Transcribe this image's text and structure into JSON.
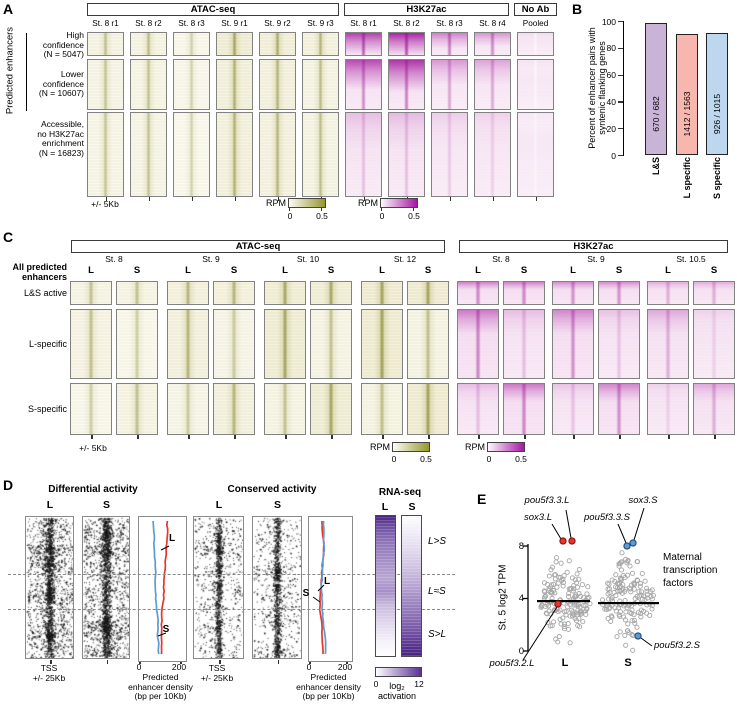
{
  "colors": {
    "olive_max": "#96962c",
    "magenta_max": "#a617a6",
    "purple_max": "#5a3193",
    "red_point": "#e8352b",
    "blue_point": "#5b9bd5",
    "bar_ls": "#c9b4d8",
    "bar_l": "#f8b7ae",
    "bar_s": "#bdd7ee"
  },
  "figure": {
    "panelA": {
      "tag": "A",
      "side_label": "Predicted enhancers",
      "groups": [
        {
          "title": "ATAC-seq",
          "cols": [
            "St. 8 r1",
            "St. 8 r2",
            "St. 8 r3",
            "St. 9 r1",
            "St. 9 r2",
            "St. 9 r3"
          ]
        },
        {
          "title": "H3K27ac",
          "cols": [
            "St. 8 r1",
            "St. 8 r2",
            "St. 8 r3",
            "St. 8 r4"
          ]
        },
        {
          "title": "No Ab",
          "cols": [
            "Pooled"
          ]
        }
      ],
      "rows": [
        {
          "lines": [
            "High",
            "confidence",
            "(N = 5047)"
          ]
        },
        {
          "lines": [
            "Lower",
            "confidence",
            "(N = 10607)"
          ]
        },
        {
          "lines": [
            "Accessible,",
            "no H3K27ac",
            "enrichment",
            "(N = 16823)"
          ]
        }
      ],
      "window_label": "+/- 5Kb",
      "colorbars": [
        {
          "label": "RPM",
          "min": "0",
          "max": "0.5"
        },
        {
          "label": "RPM",
          "min": "0",
          "max": "0.5"
        }
      ]
    },
    "panelB": {
      "tag": "B",
      "ylabel_lines": [
        "Percent of enhancer pairs with",
        "syntenic flanking genes"
      ],
      "yticks": [
        "100",
        "80",
        "60",
        "40",
        "20",
        "0"
      ],
      "bars": [
        {
          "category": "L&S",
          "count_label": "670 / 682",
          "value": 98.2
        },
        {
          "category": "L specific",
          "count_label": "1412 / 1563",
          "value": 90.3
        },
        {
          "category": "S specific",
          "count_label": "926 / 1015",
          "value": 91.2
        }
      ]
    },
    "panelC": {
      "tag": "C",
      "side_lines": [
        "All predicted",
        "enhancers"
      ],
      "groups": [
        {
          "title": "ATAC-seq",
          "stages": [
            {
              "name": "St. 8"
            },
            {
              "name": "St. 9"
            },
            {
              "name": "St. 10"
            },
            {
              "name": "St. 12"
            }
          ]
        },
        {
          "title": "H3K27ac",
          "stages": [
            {
              "name": "St. 8"
            },
            {
              "name": "St. 9"
            },
            {
              "name": "St. 10.5"
            }
          ]
        }
      ],
      "sub_labels": {
        "L": "L",
        "S": "S"
      },
      "rows": [
        {
          "label": "L&S active"
        },
        {
          "label": "L-specific"
        },
        {
          "label": "S-specific"
        }
      ],
      "window_label": "+/- 5Kb",
      "colorbars": [
        {
          "label": "RPM",
          "min": "0",
          "max": "0.5"
        },
        {
          "label": "RPM",
          "min": "0",
          "max": "0.5"
        }
      ]
    },
    "panelD": {
      "tag": "D",
      "sections": [
        {
          "title": "Differential activity",
          "col_labels": [
            "L",
            "S"
          ],
          "curve_labels": {
            "L": "L",
            "S": "S"
          },
          "tss_lines": [
            "TSS",
            "+/- 25Kb"
          ],
          "axis": {
            "min": "0",
            "max": "200"
          },
          "axis_label_lines": [
            "Predicted",
            "enhancer density",
            "(bp per 10Kb)"
          ]
        },
        {
          "title": "Conserved activity",
          "col_labels": [
            "L",
            "S"
          ],
          "curve_labels": {
            "L": "L",
            "S": "S"
          },
          "tss_lines": [
            "TSS",
            "+/- 25Kb"
          ],
          "axis": {
            "min": "0",
            "max": "200"
          },
          "axis_label_lines": [
            "Predicted",
            "enhancer density",
            "(bp per 10Kb)"
          ]
        }
      ],
      "rna": {
        "title": "RNA-seq",
        "col_labels": [
          "L",
          "S"
        ],
        "region_labels": [
          "L>S",
          "L≈S",
          "S>L"
        ],
        "colorbar": {
          "min": "0",
          "max": "12",
          "label_main": "log₂",
          "label_word": "activation"
        }
      }
    },
    "panelE": {
      "tag": "E",
      "ylabel": "St. 5 log2 TPM",
      "yticks": [
        "8",
        "4",
        "0"
      ],
      "group_labels": [
        "L",
        "S"
      ],
      "note_lines": [
        "Maternal",
        "transcription",
        "factors"
      ],
      "genes": [
        {
          "name": "pou5f3.3.L"
        },
        {
          "name": "sox3.L"
        },
        {
          "name": "pou5f3.3.S"
        },
        {
          "name": "sox3.S"
        },
        {
          "name": "pou5f3.2.L"
        },
        {
          "name": "pou5f3.2.S"
        }
      ]
    }
  },
  "chart_data": [
    {
      "type": "heatmap",
      "title": "Panel A: signal at predicted enhancers",
      "column_groups": {
        "ATAC-seq": [
          "St. 8 r1",
          "St. 8 r2",
          "St. 8 r3",
          "St. 9 r1",
          "St. 9 r2",
          "St. 9 r3"
        ],
        "H3K27ac": [
          "St. 8 r1",
          "St. 8 r2",
          "St. 8 r3",
          "St. 8 r4"
        ],
        "No Ab": [
          "Pooled"
        ]
      },
      "row_groups": [
        "High confidence (N = 5047)",
        "Lower confidence (N = 10607)",
        "Accessible, no H3K27ac enrichment (N = 16823)"
      ],
      "window": "+/- 5Kb",
      "scale": {
        "label": "RPM",
        "min": 0,
        "max": 0.5
      }
    },
    {
      "type": "bar",
      "categories": [
        "L&S",
        "L specific",
        "S specific"
      ],
      "values": [
        98.2,
        90.3,
        91.2
      ],
      "counts": [
        "670 / 682",
        "1412 / 1563",
        "926 / 1015"
      ],
      "ylabel": "Percent of enhancer pairs with syntenic flanking genes",
      "ylim": [
        0,
        100
      ]
    },
    {
      "type": "heatmap",
      "title": "Panel C: all predicted enhancers, L vs S",
      "column_groups": {
        "ATAC-seq": [
          "St. 8 L",
          "St. 8 S",
          "St. 9 L",
          "St. 9 S",
          "St. 10 L",
          "St. 10 S",
          "St. 12 L",
          "St. 12 S"
        ],
        "H3K27ac": [
          "St. 8 L",
          "St. 8 S",
          "St. 9 L",
          "St. 9 S",
          "St. 10.5 L",
          "St. 10.5 S"
        ]
      },
      "row_groups": [
        "L&S active",
        "L-specific",
        "S-specific"
      ],
      "window": "+/- 5Kb",
      "scale": {
        "label": "RPM",
        "min": 0,
        "max": 0.5
      }
    },
    {
      "type": "line",
      "title": "Panel D: predicted enhancer density around TSS (+/- 25Kb)",
      "panels": [
        "Differential activity",
        "Conserved activity"
      ],
      "series": [
        "L",
        "S"
      ],
      "xlabel": "Predicted enhancer density (bp per 10Kb)",
      "xlim": [
        0,
        200
      ],
      "rna_seq_regions": [
        "L>S",
        "L≈S",
        "S>L"
      ],
      "colorbar": {
        "label": "log2 activation",
        "min": 0,
        "max": 12
      }
    },
    {
      "type": "scatter",
      "title": "Panel E: St. 5 log2 TPM, maternal transcription factors",
      "groups": [
        "L",
        "S"
      ],
      "ylabel": "St. 5 log2 TPM",
      "ylim": [
        0,
        9
      ],
      "median": {
        "L": 3.9,
        "S": 3.85
      },
      "highlighted": [
        {
          "gene": "pou5f3.3.L",
          "group": "L",
          "value": 8.4,
          "color": "red"
        },
        {
          "gene": "sox3.L",
          "group": "L",
          "value": 8.4,
          "color": "red"
        },
        {
          "gene": "pou5f3.2.L",
          "group": "L",
          "value": 3.6,
          "color": "red"
        },
        {
          "gene": "pou5f3.3.S",
          "group": "S",
          "value": 8.0,
          "color": "blue"
        },
        {
          "gene": "sox3.S",
          "group": "S",
          "value": 8.3,
          "color": "blue"
        },
        {
          "gene": "pou5f3.2.S",
          "group": "S",
          "value": 1.2,
          "color": "blue"
        }
      ]
    }
  ]
}
